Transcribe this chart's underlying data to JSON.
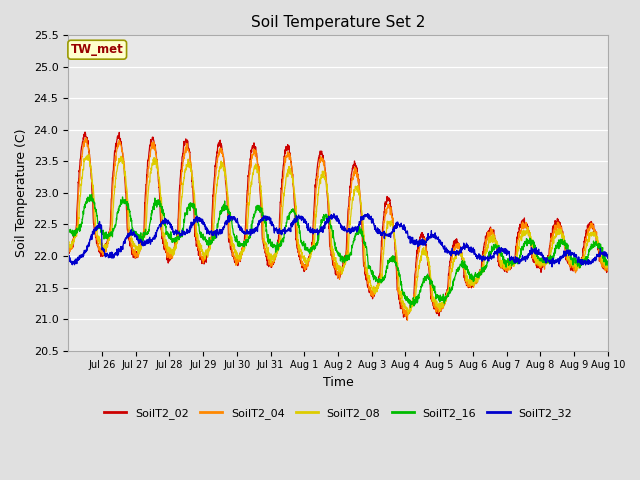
{
  "title": "Soil Temperature Set 2",
  "xlabel": "Time",
  "ylabel": "Soil Temperature (C)",
  "ylim": [
    20.5,
    25.5
  ],
  "yticks": [
    20.5,
    21.0,
    21.5,
    22.0,
    22.5,
    23.0,
    23.5,
    24.0,
    24.5,
    25.0,
    25.5
  ],
  "series_labels": [
    "SoilT2_02",
    "SoilT2_04",
    "SoilT2_08",
    "SoilT2_16",
    "SoilT2_32"
  ],
  "series_colors": [
    "#cc0000",
    "#ff8800",
    "#ddcc00",
    "#00bb00",
    "#0000cc"
  ],
  "annotation_text": "TW_met",
  "annotation_bg": "#ffffcc",
  "annotation_border": "#999900",
  "annotation_text_color": "#990000",
  "background_color": "#e0e0e0",
  "plot_bg": "#e8e8e8",
  "n_days": 16,
  "pts_per_day": 144,
  "x_tick_labels": [
    "Jul 26",
    "Jul 27",
    "Jul 28",
    "Jul 29",
    "Jul 30",
    "Jul 31",
    "Aug 1",
    "Aug 2",
    "Aug 3",
    "Aug 4",
    "Aug 5",
    "Aug 6",
    "Aug 7",
    "Aug 8",
    "Aug 9",
    "Aug 10"
  ],
  "x_tick_positions": [
    1,
    2,
    3,
    4,
    5,
    6,
    7,
    8,
    9,
    10,
    11,
    12,
    13,
    14,
    15,
    16
  ]
}
